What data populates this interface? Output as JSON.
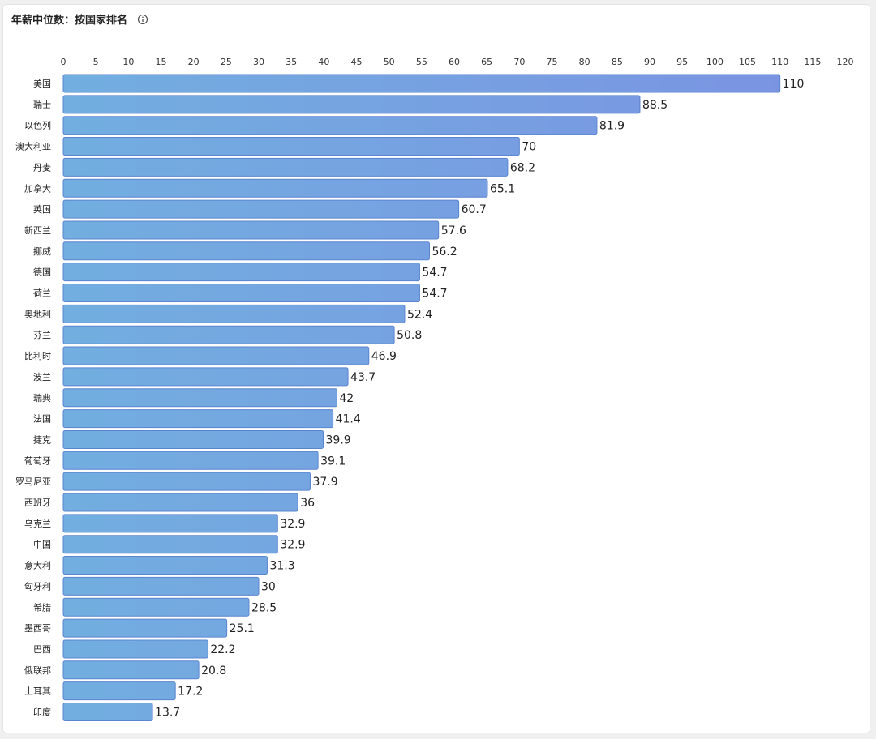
{
  "header": {
    "title": "年薪中位数：按国家排名",
    "info_icon": "info-circle-icon"
  },
  "chart_data": {
    "type": "bar",
    "orientation": "horizontal",
    "title": "年薪中位数：按国家排名",
    "xlim": [
      0,
      120
    ],
    "xticks": [
      0,
      5,
      10,
      15,
      20,
      25,
      30,
      35,
      40,
      45,
      50,
      55,
      60,
      65,
      70,
      75,
      80,
      85,
      90,
      95,
      100,
      105,
      110,
      115,
      120
    ],
    "categories": [
      "美国",
      "瑞士",
      "以色列",
      "澳大利亚",
      "丹麦",
      "加拿大",
      "英国",
      "新西兰",
      "挪威",
      "德国",
      "荷兰",
      "奥地利",
      "芬兰",
      "比利时",
      "波兰",
      "瑞典",
      "法国",
      "捷克",
      "葡萄牙",
      "罗马尼亚",
      "西班牙",
      "乌克兰",
      "中国",
      "意大利",
      "匈牙利",
      "希腊",
      "墨西哥",
      "巴西",
      "俄联邦",
      "土耳其",
      "印度"
    ],
    "values": [
      110,
      88.5,
      81.9,
      70,
      68.2,
      65.1,
      60.7,
      57.6,
      56.2,
      54.7,
      54.7,
      52.4,
      50.8,
      46.9,
      43.7,
      42,
      41.4,
      39.9,
      39.1,
      37.9,
      36,
      32.9,
      32.9,
      31.3,
      30,
      28.5,
      25.1,
      22.2,
      20.8,
      17.2,
      13.7
    ],
    "grid": false,
    "legend": "none",
    "colors": {
      "bar_start": "#72aee0",
      "bar_end": "#7b92e2",
      "bar_border": "#5a84cf"
    }
  }
}
